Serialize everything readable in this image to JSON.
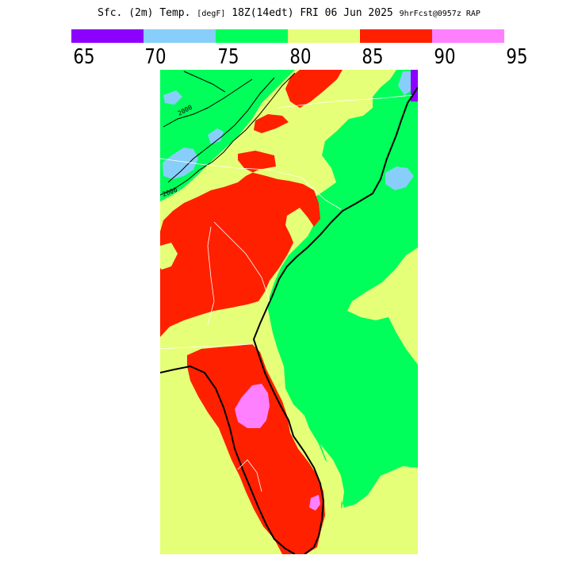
{
  "title": {
    "main": "Sfc. (2m) Temp.",
    "units": "[degF]",
    "valid": "18Z(14edt) FRI 06 Jun 2025",
    "forecast": "9hrFcst@0957z RAP"
  },
  "colorbar": {
    "colors": [
      "#8c00ff",
      "#87cefa",
      "#00ff5a",
      "#e6ff78",
      "#ff2000",
      "#ff80ff"
    ],
    "ticks": [
      "65",
      "70",
      "75",
      "80",
      "85",
      "90",
      "95"
    ]
  },
  "map": {
    "contour_label": "2000",
    "colors": {
      "t70_75": "#87cefa",
      "t75_80": "#00ff5a",
      "t80_85": "#e6ff78",
      "t85_90": "#ff2000",
      "t90_95": "#ff80ff",
      "t65_70": "#8c00ff"
    }
  }
}
